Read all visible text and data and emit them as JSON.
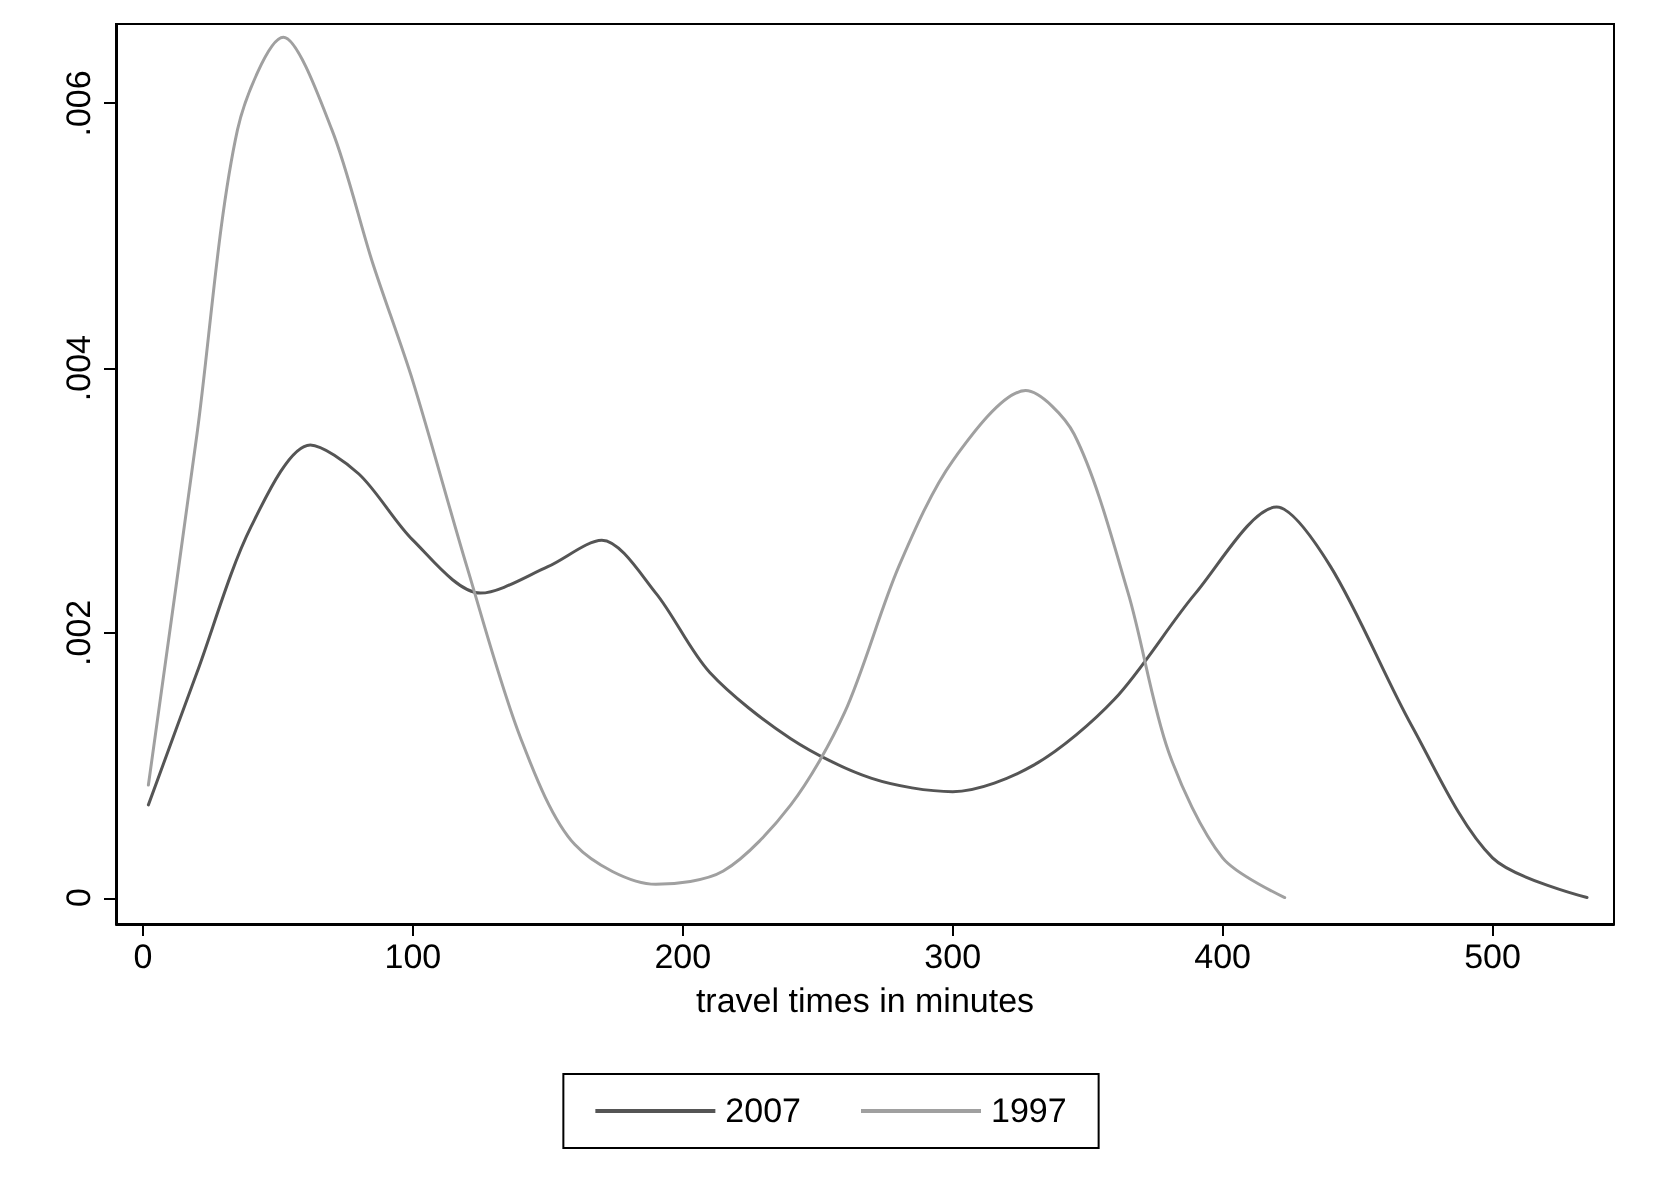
{
  "chart_data": {
    "type": "line",
    "xlabel": "travel times in minutes",
    "xlim": [
      -10,
      545
    ],
    "xticks": [
      0,
      100,
      200,
      300,
      400,
      500
    ],
    "ylim": [
      -0.0002,
      0.0066
    ],
    "yticks": [
      0,
      {
        "value": 0.002,
        "label": ".002"
      },
      {
        "value": 0.004,
        "label": ".004"
      },
      {
        "value": 0.006,
        "label": ".006"
      }
    ],
    "grid": false,
    "legend": "bottom",
    "marker": "none",
    "line_style": "solid",
    "series": [
      {
        "name": "2007",
        "color": "#555555",
        "x": [
          2,
          20,
          40,
          62,
          80,
          100,
          125,
          150,
          170,
          190,
          210,
          240,
          270,
          300,
          330,
          360,
          390,
          420,
          440,
          470,
          500,
          535
        ],
        "values": [
          0.0007,
          0.0017,
          0.0028,
          0.00342,
          0.0032,
          0.0027,
          0.0023,
          0.0025,
          0.0027,
          0.0023,
          0.0017,
          0.0012,
          0.0009,
          0.0008,
          0.001,
          0.0015,
          0.0023,
          0.00295,
          0.0025,
          0.0013,
          0.0003,
          0
        ]
      },
      {
        "name": "1997",
        "color": "#a0a0a0",
        "x": [
          2,
          20,
          35,
          52,
          70,
          85,
          100,
          120,
          140,
          160,
          190,
          215,
          240,
          260,
          280,
          300,
          327,
          345,
          365,
          380,
          400,
          423
        ],
        "values": [
          0.00085,
          0.0035,
          0.0058,
          0.0065,
          0.0058,
          0.0048,
          0.0039,
          0.0025,
          0.0012,
          0.0004,
          0.0001,
          0.0002,
          0.0007,
          0.0014,
          0.0025,
          0.0033,
          0.00383,
          0.0035,
          0.0023,
          0.0011,
          0.0003,
          0
        ]
      }
    ]
  }
}
